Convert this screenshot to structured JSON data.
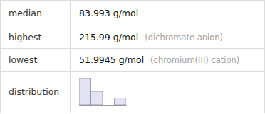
{
  "table": {
    "rows": [
      {
        "label": "median",
        "value": "83.993 g/mol"
      },
      {
        "label": "highest",
        "value": "215.99 g/mol",
        "note": "(dichromate anion)"
      },
      {
        "label": "lowest",
        "value": "51.9945 g/mol",
        "note": "(chromium(III) cation)"
      },
      {
        "label": "distribution"
      }
    ]
  },
  "chart_data": {
    "type": "histogram",
    "bins": [
      50,
      100,
      150,
      200,
      250
    ],
    "values": [
      4,
      2,
      0,
      1
    ],
    "xlim": [
      50,
      250
    ],
    "ylim": [
      0,
      4
    ],
    "tick_labels": false,
    "color": "#e3e3f3"
  }
}
